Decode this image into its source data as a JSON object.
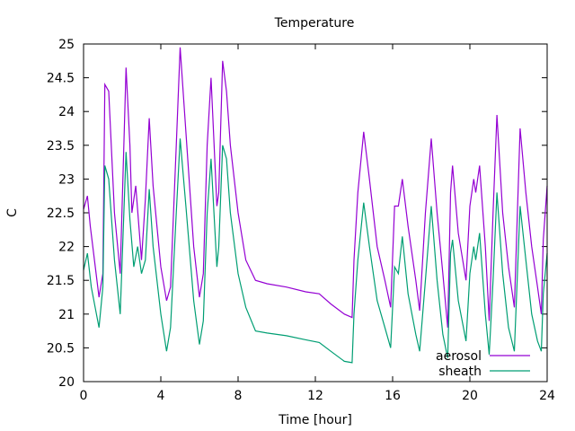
{
  "chart_data": {
    "type": "line",
    "title": "Temperature",
    "xlabel": "Time [hour]",
    "ylabel": "C",
    "xlim": [
      0,
      24
    ],
    "ylim": [
      20,
      25
    ],
    "xticks": [
      0,
      4,
      8,
      12,
      16,
      20,
      24
    ],
    "yticks": [
      20,
      20.5,
      21,
      21.5,
      22,
      22.5,
      23,
      23.5,
      24,
      24.5,
      25
    ],
    "legend_position": "bottom-right",
    "grid": false,
    "series": [
      {
        "name": "aerosol",
        "color": "#9400d3",
        "x": [
          0,
          0.2,
          0.35,
          0.8,
          1.0,
          1.1,
          1.3,
          1.6,
          1.9,
          2.2,
          2.4,
          2.5,
          2.7,
          3.0,
          3.2,
          3.4,
          3.6,
          4.0,
          4.3,
          4.5,
          4.8,
          5.0,
          5.3,
          5.7,
          6.0,
          6.2,
          6.4,
          6.6,
          6.9,
          7.0,
          7.2,
          7.4,
          7.6,
          8,
          8.4,
          8.9,
          9.5,
          10.5,
          11.5,
          12.2,
          12.8,
          13.5,
          13.9,
          14.0,
          14.2,
          14.5,
          14.8,
          15.2,
          15.6,
          15.9,
          16.1,
          16.3,
          16.5,
          16.8,
          17.2,
          17.4,
          17.7,
          18.0,
          18.3,
          18.6,
          18.85,
          19.0,
          19.1,
          19.4,
          19.8,
          20.0,
          20.2,
          20.3,
          20.5,
          20.8,
          21.0,
          21.2,
          21.4,
          21.7,
          22.0,
          22.3,
          22.6,
          22.9,
          23.2,
          23.5,
          23.7,
          23.8,
          24
        ],
        "y": [
          22.55,
          22.75,
          22.3,
          21.25,
          21.6,
          24.4,
          24.3,
          22.5,
          21.6,
          24.65,
          23.5,
          22.5,
          22.9,
          21.8,
          22.7,
          23.9,
          22.9,
          21.7,
          21.2,
          21.4,
          23.5,
          24.95,
          23.7,
          22.0,
          21.25,
          21.6,
          23.5,
          24.5,
          22.6,
          22.8,
          24.75,
          24.3,
          23.5,
          22.5,
          21.8,
          21.5,
          21.45,
          21.4,
          21.33,
          21.3,
          21.15,
          21.0,
          20.95,
          21.8,
          22.8,
          23.7,
          23.0,
          22.0,
          21.5,
          21.1,
          22.6,
          22.6,
          23.0,
          22.3,
          21.5,
          21.05,
          22.5,
          23.6,
          22.5,
          21.6,
          20.8,
          22.8,
          23.2,
          22.2,
          21.5,
          22.6,
          23.0,
          22.8,
          23.2,
          22.0,
          20.9,
          22.5,
          23.95,
          22.5,
          21.7,
          21.1,
          23.75,
          22.8,
          22.0,
          21.4,
          21.0,
          22.1,
          22.9
        ]
      },
      {
        "name": "sheath",
        "color": "#009e73",
        "x": [
          0,
          0.2,
          0.4,
          0.8,
          1.0,
          1.1,
          1.3,
          1.6,
          1.9,
          2.2,
          2.4,
          2.6,
          2.8,
          3.0,
          3.2,
          3.4,
          3.6,
          4.0,
          4.3,
          4.5,
          4.8,
          5.0,
          5.3,
          5.7,
          6.0,
          6.2,
          6.4,
          6.6,
          6.9,
          7.0,
          7.2,
          7.4,
          7.6,
          8,
          8.4,
          8.9,
          9.5,
          10.5,
          11.5,
          12.2,
          12.8,
          13.5,
          13.9,
          14.0,
          14.2,
          14.5,
          14.8,
          15.2,
          15.6,
          15.9,
          16.1,
          16.3,
          16.5,
          16.8,
          17.2,
          17.4,
          17.7,
          18.0,
          18.3,
          18.6,
          18.85,
          19.0,
          19.1,
          19.4,
          19.8,
          20.0,
          20.2,
          20.3,
          20.5,
          20.8,
          21.0,
          21.2,
          21.4,
          21.7,
          22.0,
          22.3,
          22.6,
          22.9,
          23.2,
          23.5,
          23.7,
          23.8,
          24
        ],
        "y": [
          21.65,
          21.9,
          21.4,
          20.8,
          21.4,
          23.2,
          23.0,
          21.8,
          21.0,
          23.4,
          22.4,
          21.7,
          22.0,
          21.6,
          21.8,
          22.85,
          22.0,
          21.0,
          20.45,
          20.8,
          22.5,
          23.6,
          22.6,
          21.2,
          20.55,
          20.9,
          22.5,
          23.3,
          21.7,
          22.0,
          23.5,
          23.3,
          22.5,
          21.6,
          21.1,
          20.75,
          20.72,
          20.68,
          20.62,
          20.58,
          20.45,
          20.3,
          20.28,
          21.0,
          21.8,
          22.65,
          22.0,
          21.2,
          20.8,
          20.5,
          21.7,
          21.6,
          22.15,
          21.3,
          20.7,
          20.45,
          21.5,
          22.6,
          21.5,
          20.7,
          20.35,
          21.9,
          22.1,
          21.2,
          20.6,
          21.6,
          22.0,
          21.8,
          22.2,
          21.0,
          20.4,
          21.5,
          22.8,
          21.6,
          20.8,
          20.45,
          22.6,
          21.8,
          21.0,
          20.6,
          20.45,
          21.3,
          21.9
        ]
      }
    ]
  }
}
